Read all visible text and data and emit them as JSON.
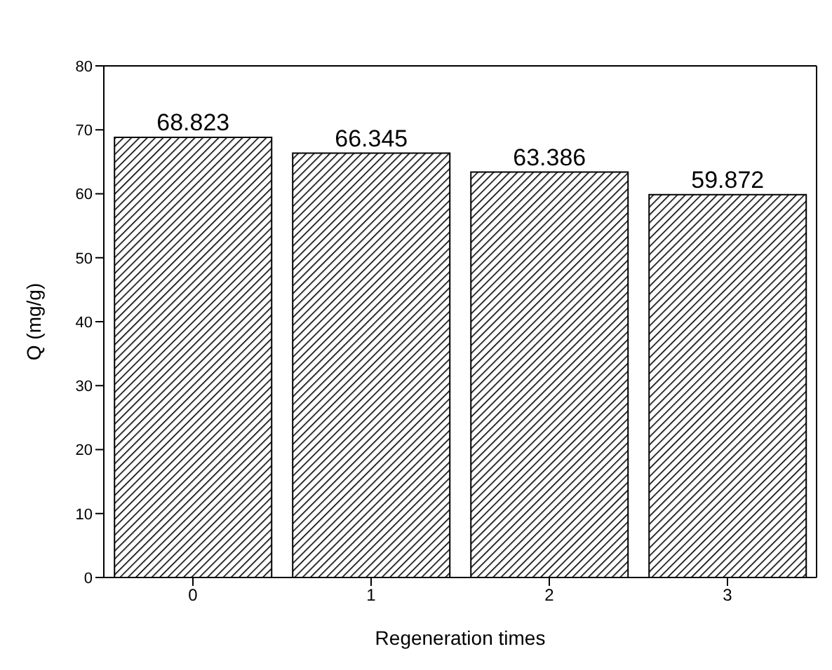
{
  "chart_data": {
    "type": "bar",
    "xlabel": "Regeneration times",
    "ylabel": "Q (mg/g)",
    "categories": [
      "0",
      "1",
      "2",
      "3"
    ],
    "values": [
      68.823,
      66.345,
      63.386,
      59.872
    ],
    "color": "#000000",
    "ylim": [
      0,
      80
    ],
    "yticks": [
      0,
      10,
      20,
      30,
      40,
      50,
      60,
      70,
      80
    ],
    "data_labels": true
  }
}
